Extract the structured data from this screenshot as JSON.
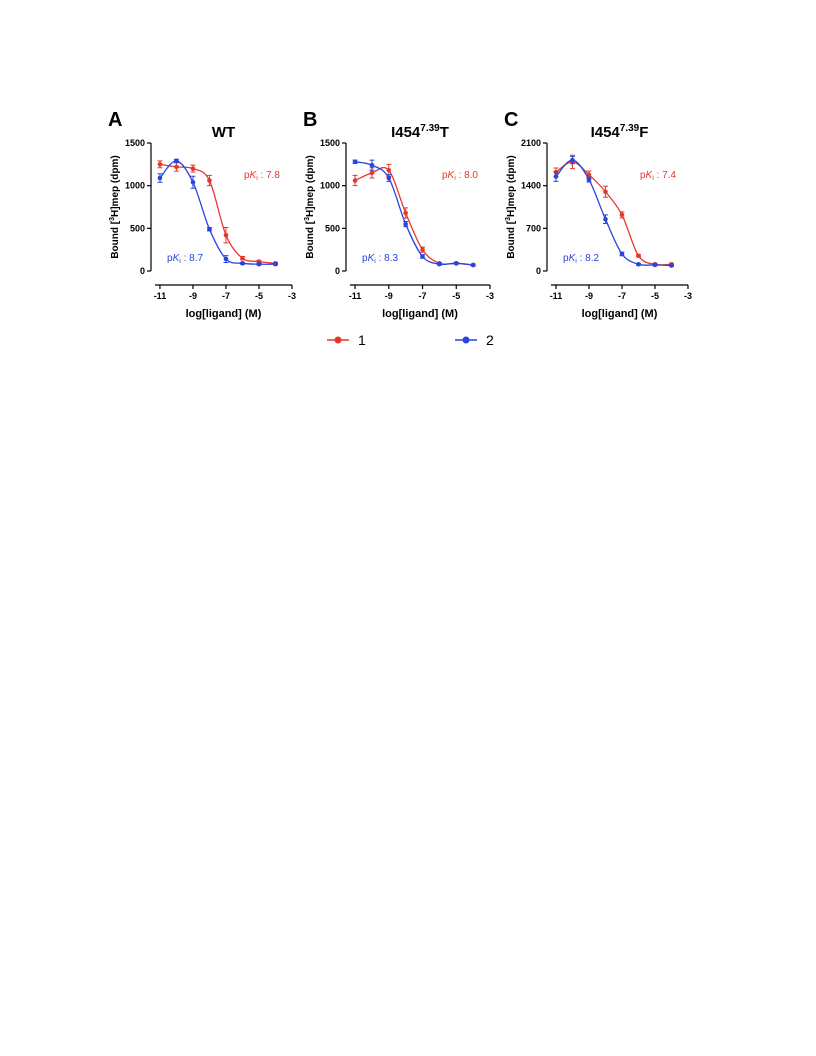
{
  "charts": [
    {
      "chart_data": {
        "type": "scatter",
        "panel": "A",
        "title": "WT",
        "ylabel": {
          "pre": "Bound [",
          "sup": "3",
          "post": "H]mep (dpm)"
        },
        "xlabel": "log[ligand] (M)",
        "x": [
          -11,
          -10,
          -9,
          -8,
          -7,
          -6,
          -5,
          -4
        ],
        "series": [
          {
            "color": "#e5382a",
            "values": [
              1250,
              1220,
              1200,
              1060,
              420,
              150,
              110,
              90
            ],
            "errors": [
              40,
              50,
              40,
              60,
              90,
              20,
              15,
              10
            ]
          },
          {
            "color": "#2a45dd",
            "values": [
              1090,
              1290,
              1040,
              490,
              140,
              90,
              80,
              80
            ],
            "errors": [
              50,
              20,
              70,
              20,
              40,
              10,
              10,
              10
            ]
          }
        ],
        "annotations": [
          {
            "pre": "p",
            "italic": "K",
            "sub": "i",
            "post": " : 7.8",
            "color": "#e5382a",
            "pos": "top-right"
          },
          {
            "pre": "p",
            "italic": "K",
            "sub": "i",
            "post": " : 8.7",
            "color": "#2a45dd",
            "pos": "bottom-left"
          }
        ],
        "xlim": [
          -11.3,
          -3
        ],
        "xticks": [
          -11,
          -9,
          -7,
          -5,
          -3
        ],
        "ylim": [
          0,
          1500
        ],
        "yticks": [
          0,
          500,
          1000,
          1500
        ]
      }
    },
    {
      "chart_data": {
        "type": "scatter",
        "panel": "B",
        "title": {
          "base": "I454",
          "sup": "7.39",
          "tail": "T"
        },
        "ylabel": {
          "pre": "Bound [",
          "sup": "3",
          "post": "H]mep (dpm)"
        },
        "xlabel": "log[ligand] (M)",
        "x": [
          -11,
          -10,
          -9,
          -8,
          -7,
          -6,
          -5,
          -4
        ],
        "series": [
          {
            "color": "#e5382a",
            "values": [
              1060,
              1150,
              1180,
              680,
              250,
              90,
              90,
              70
            ],
            "errors": [
              60,
              60,
              70,
              60,
              30,
              10,
              10,
              10
            ]
          },
          {
            "color": "#2a45dd",
            "values": [
              1280,
              1240,
              1090,
              550,
              170,
              80,
              90,
              70
            ],
            "errors": [
              20,
              60,
              40,
              30,
              20,
              10,
              10,
              10
            ]
          }
        ],
        "annotations": [
          {
            "pre": "p",
            "italic": "K",
            "sub": "i",
            "post": " : 8.0",
            "color": "#e5382a",
            "pos": "top-right"
          },
          {
            "pre": "p",
            "italic": "K",
            "sub": "i",
            "post": " : 8.3",
            "color": "#2a45dd",
            "pos": "bottom-left"
          }
        ],
        "xlim": [
          -11.3,
          -3
        ],
        "xticks": [
          -11,
          -9,
          -7,
          -5,
          -3
        ],
        "ylim": [
          0,
          1500
        ],
        "yticks": [
          0,
          500,
          1000,
          1500
        ]
      }
    },
    {
      "chart_data": {
        "type": "scatter",
        "panel": "C",
        "title": {
          "base": "I454",
          "sup": "7.39",
          "tail": "F"
        },
        "ylabel": {
          "pre": "Bound [",
          "sup": "3",
          "post": "H]mep (dpm)"
        },
        "xlabel": "log[ligand] (M)",
        "x": [
          -11,
          -10,
          -9,
          -8,
          -7,
          -6,
          -5,
          -4
        ],
        "series": [
          {
            "color": "#e5382a",
            "values": [
              1620,
              1790,
              1580,
              1300,
              920,
              250,
              110,
              110
            ],
            "errors": [
              70,
              110,
              60,
              90,
              50,
              20,
              15,
              15
            ]
          },
          {
            "color": "#2a45dd",
            "values": [
              1550,
              1820,
              1500,
              850,
              280,
              110,
              100,
              90
            ],
            "errors": [
              80,
              60,
              40,
              70,
              30,
              15,
              15,
              15
            ]
          }
        ],
        "annotations": [
          {
            "pre": "p",
            "italic": "K",
            "sub": "i",
            "post": " : 7.4",
            "color": "#e5382a",
            "pos": "top-right"
          },
          {
            "pre": "p",
            "italic": "K",
            "sub": "i",
            "post": " : 8.2",
            "color": "#2a45dd",
            "pos": "bottom-left"
          }
        ],
        "xlim": [
          -11.3,
          -3
        ],
        "xticks": [
          -11,
          -9,
          -7,
          -5,
          -3
        ],
        "ylim": [
          0,
          2100
        ],
        "yticks": [
          0,
          700,
          1400,
          2100
        ]
      }
    }
  ],
  "legend": [
    {
      "name": "1",
      "color": "#e5382a"
    },
    {
      "name": "2",
      "color": "#2a45dd"
    }
  ]
}
